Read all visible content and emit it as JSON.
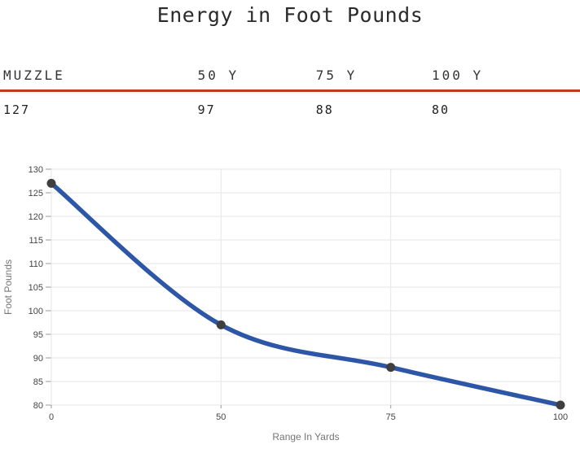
{
  "title": "Energy in Foot Pounds",
  "table": {
    "headers": [
      "MUZZLE",
      "50 Y",
      "75 Y",
      "100 Y"
    ],
    "values": [
      "127",
      "97",
      "88",
      "80"
    ],
    "rule_color": "#c23a21"
  },
  "chart_data": {
    "type": "line",
    "categories": [
      "0",
      "50",
      "75",
      "100"
    ],
    "values": [
      127,
      97,
      88,
      80
    ],
    "title": "",
    "xlabel": "Range In Yards",
    "ylabel": "Foot Pounds",
    "ylim": [
      80,
      130
    ],
    "ytick_step": 5,
    "grid": true,
    "legend_position": "none",
    "colors": {
      "line": "#2d56a6",
      "point": "#3f3f3f",
      "gridline": "#e6e6e6",
      "tick_mark": "#9a9a9a",
      "tick_label": "#444444",
      "axis_title": "#757575"
    }
  }
}
